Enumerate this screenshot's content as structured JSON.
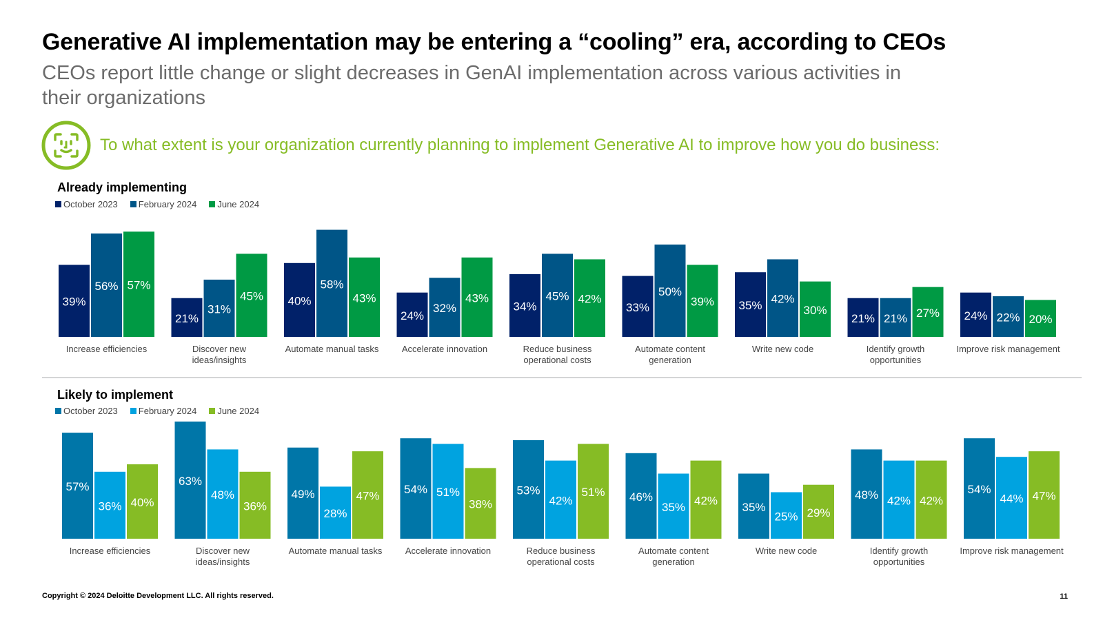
{
  "title": "Generative AI implementation may be entering a “cooling” era, according to CEOs",
  "subtitle": "CEOs report little change or slight decreases in GenAI implementation across various activities in their organizations",
  "question": "To what extent is your organization currently planning to implement Generative AI to improve how you do business:",
  "question_icon": "face-scan-icon",
  "chart_data": [
    {
      "type": "bar",
      "title": "Already implementing",
      "categories": [
        [
          "Increase efficiencies"
        ],
        [
          "Discover new",
          "ideas/insights"
        ],
        [
          "Automate manual tasks"
        ],
        [
          "Accelerate innovation"
        ],
        [
          "Reduce business",
          "operational costs"
        ],
        [
          "Automate content",
          "generation"
        ],
        [
          "Write new code"
        ],
        [
          "Identify growth",
          "opportunities"
        ],
        [
          "Improve risk management"
        ]
      ],
      "series": [
        {
          "name": "October 2023",
          "color": "#012169",
          "values": [
            39,
            21,
            40,
            24,
            34,
            33,
            35,
            21,
            24
          ]
        },
        {
          "name": "February 2024",
          "color": "#005587",
          "values": [
            56,
            31,
            58,
            32,
            45,
            50,
            42,
            21,
            22
          ]
        },
        {
          "name": "June 2024",
          "color": "#009a44",
          "values": [
            57,
            45,
            43,
            43,
            42,
            39,
            30,
            27,
            20
          ]
        }
      ],
      "value_suffix": "%",
      "legend_position": "top-left",
      "grid": false
    },
    {
      "type": "bar",
      "title": "Likely to implement",
      "categories": [
        [
          "Increase efficiencies"
        ],
        [
          "Discover new",
          "ideas/insights"
        ],
        [
          "Automate manual tasks"
        ],
        [
          "Accelerate innovation"
        ],
        [
          "Reduce business",
          "operational costs"
        ],
        [
          "Automate content",
          "generation"
        ],
        [
          "Write new code"
        ],
        [
          "Identify growth",
          "opportunities"
        ],
        [
          "Improve risk management"
        ]
      ],
      "series": [
        {
          "name": "October 2023",
          "color": "#0076a8",
          "values": [
            57,
            63,
            49,
            54,
            53,
            46,
            35,
            48,
            54
          ]
        },
        {
          "name": "February 2024",
          "color": "#00a3e0",
          "values": [
            36,
            48,
            28,
            51,
            42,
            35,
            25,
            42,
            44
          ]
        },
        {
          "name": "June 2024",
          "color": "#86bc25",
          "values": [
            40,
            36,
            47,
            38,
            51,
            42,
            29,
            42,
            47
          ]
        }
      ],
      "value_suffix": "%",
      "legend_position": "top-left",
      "grid": false
    }
  ],
  "footer": {
    "copyright": "Copyright © 2024 Deloitte Development LLC. All rights reserved.",
    "page_number": "11"
  }
}
